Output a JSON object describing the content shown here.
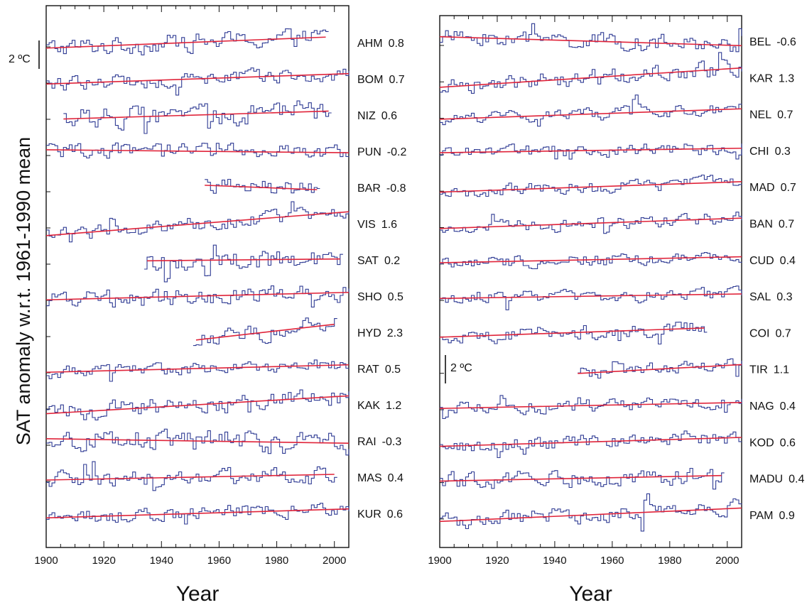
{
  "y_axis_title": "SAT anomaly w.r.t. 1961-1990 mean",
  "colors": {
    "series": "#2f3b94",
    "trend": "#e0243a",
    "axis": "#111111"
  },
  "chart_data": [
    {
      "type": "line",
      "panel": "left",
      "xlabel": "Year",
      "xlim": [
        1900,
        2005
      ],
      "x_ticks": [
        1900,
        1920,
        1940,
        1960,
        1980,
        2000
      ],
      "scale_bar_label": "2 ºC",
      "scale_bar_value": 2,
      "series": [
        {
          "code": "AHM",
          "trend": "0.8",
          "start": 1900,
          "end": 1997,
          "noise": 0.45,
          "trend_from": 1900
        },
        {
          "code": "BOM",
          "trend": "0.7",
          "start": 1900,
          "end": 2005,
          "noise": 0.35,
          "trend_from": 1900
        },
        {
          "code": "NIZ",
          "trend": "0.6",
          "start": 1906,
          "end": 1998,
          "noise": 0.5,
          "trend_from": 1906
        },
        {
          "code": "PUN",
          "trend": "-0.2",
          "start": 1900,
          "end": 2005,
          "noise": 0.35,
          "trend_from": 1900
        },
        {
          "code": "BAR",
          "trend": "-0.8",
          "start": 1955,
          "end": 1994,
          "noise": 0.4,
          "trend_from": 1955
        },
        {
          "code": "VIS",
          "trend": "1.6",
          "start": 1900,
          "end": 2005,
          "noise": 0.35,
          "trend_from": 1900
        },
        {
          "code": "SAT",
          "trend": "0.2",
          "start": 1934,
          "end": 2002,
          "noise": 0.5,
          "trend_from": 1935
        },
        {
          "code": "SHO",
          "trend": "0.5",
          "start": 1900,
          "end": 2005,
          "noise": 0.4,
          "trend_from": 1900
        },
        {
          "code": "HYD",
          "trend": "2.3",
          "start": 1951,
          "end": 2000,
          "noise": 0.4,
          "trend_from": 1952
        },
        {
          "code": "RAT",
          "trend": "0.5",
          "start": 1900,
          "end": 2005,
          "noise": 0.3,
          "trend_from": 1900
        },
        {
          "code": "KAK",
          "trend": "1.2",
          "start": 1900,
          "end": 2005,
          "noise": 0.45,
          "trend_from": 1900
        },
        {
          "code": "RAI",
          "trend": "-0.3",
          "start": 1900,
          "end": 2005,
          "noise": 0.55,
          "trend_from": 1900
        },
        {
          "code": "MAS",
          "trend": "0.4",
          "start": 1900,
          "end": 2000,
          "noise": 0.4,
          "trend_from": 1900
        },
        {
          "code": "KUR",
          "trend": "0.6",
          "start": 1900,
          "end": 2005,
          "noise": 0.35,
          "trend_from": 1900
        }
      ]
    },
    {
      "type": "line",
      "panel": "right",
      "xlabel": "Year",
      "xlim": [
        1900,
        2005
      ],
      "x_ticks": [
        1900,
        1920,
        1940,
        1960,
        1980,
        2000
      ],
      "scale_bar_label": "2 ºC",
      "scale_bar_value": 2,
      "series": [
        {
          "code": "BEL",
          "trend": "-0.6",
          "start": 1900,
          "end": 2005,
          "noise": 0.4,
          "trend_from": 1900
        },
        {
          "code": "KAR",
          "trend": "1.3",
          "start": 1900,
          "end": 2005,
          "noise": 0.4,
          "trend_from": 1900
        },
        {
          "code": "NEL",
          "trend": "0.7",
          "start": 1900,
          "end": 2005,
          "noise": 0.3,
          "trend_from": 1900
        },
        {
          "code": "CHI",
          "trend": "0.3",
          "start": 1900,
          "end": 2005,
          "noise": 0.3,
          "trend_from": 1900
        },
        {
          "code": "MAD",
          "trend": "0.7",
          "start": 1900,
          "end": 2005,
          "noise": 0.3,
          "trend_from": 1900
        },
        {
          "code": "BAN",
          "trend": "0.7",
          "start": 1900,
          "end": 2005,
          "noise": 0.3,
          "trend_from": 1900
        },
        {
          "code": "CUD",
          "trend": "0.4",
          "start": 1900,
          "end": 2005,
          "noise": 0.3,
          "trend_from": 1900
        },
        {
          "code": "SAL",
          "trend": "0.3",
          "start": 1900,
          "end": 2005,
          "noise": 0.3,
          "trend_from": 1900
        },
        {
          "code": "COI",
          "trend": "0.7",
          "start": 1900,
          "end": 1992,
          "noise": 0.35,
          "trend_from": 1900
        },
        {
          "code": "TIR",
          "trend": "1.1",
          "start": 1948,
          "end": 2005,
          "noise": 0.3,
          "trend_from": 1948
        },
        {
          "code": "NAG",
          "trend": "0.4",
          "start": 1900,
          "end": 2005,
          "noise": 0.3,
          "trend_from": 1900
        },
        {
          "code": "KOD",
          "trend": "0.6",
          "start": 1900,
          "end": 2005,
          "noise": 0.35,
          "trend_from": 1900
        },
        {
          "code": "MADU",
          "trend": "0.4",
          "start": 1900,
          "end": 1998,
          "noise": 0.4,
          "trend_from": 1900
        },
        {
          "code": "PAM",
          "trend": "0.9",
          "start": 1900,
          "end": 2005,
          "noise": 0.4,
          "trend_from": 1900
        }
      ]
    }
  ]
}
